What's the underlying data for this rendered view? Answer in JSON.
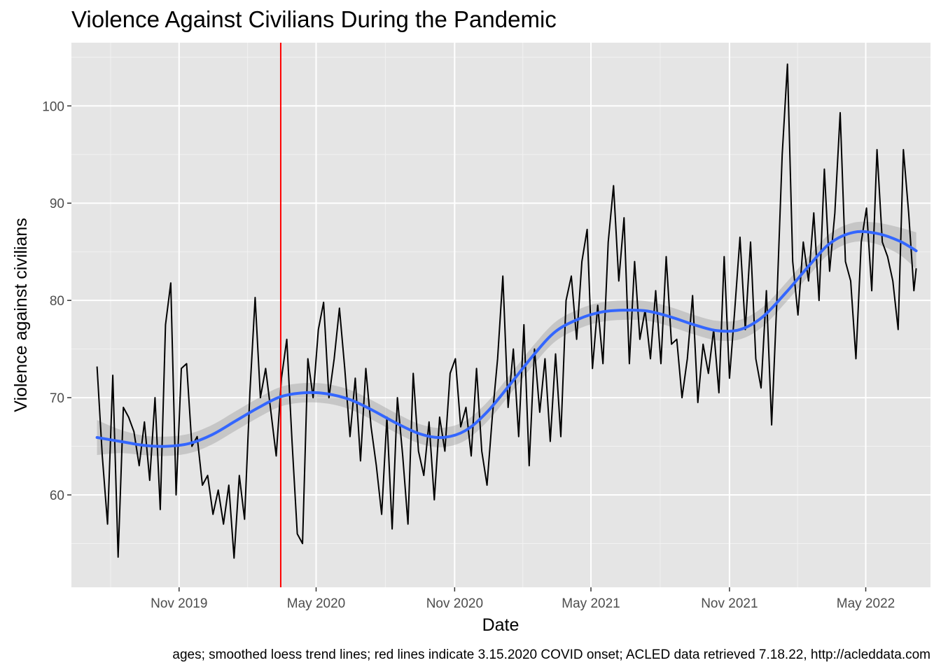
{
  "chart_data": {
    "type": "line",
    "title": "Violence Against Civilians During the Pandemic",
    "xlabel": "Date",
    "ylabel": "Violence against civilians",
    "caption": "ages; smoothed loess trend lines; red lines indicate 3.15.2020 COVID onset; ACLED data retrieved 7.18.22, http://acleddata.com",
    "x_ticks": [
      {
        "label": "Nov 2019",
        "date": "2019-11-01"
      },
      {
        "label": "May 2020",
        "date": "2020-05-01"
      },
      {
        "label": "Nov 2020",
        "date": "2020-11-01"
      },
      {
        "label": "May 2021",
        "date": "2021-05-01"
      },
      {
        "label": "Nov 2021",
        "date": "2021-11-01"
      },
      {
        "label": "May 2022",
        "date": "2022-05-01"
      }
    ],
    "y_ticks": [
      60,
      70,
      80,
      90,
      100
    ],
    "xlim": [
      "2019-06-11",
      "2022-07-26"
    ],
    "ylim": [
      50.5,
      106.5
    ],
    "grid": true,
    "vline": {
      "date": "2020-03-15",
      "color": "#ff0000"
    },
    "series": [
      {
        "kind": "rolling",
        "color": "#000000",
        "points": [
          [
            "2019-07-15",
            73.2
          ],
          [
            "2019-07-22",
            64.0
          ],
          [
            "2019-07-29",
            57.0
          ],
          [
            "2019-08-05",
            72.3
          ],
          [
            "2019-08-12",
            53.6
          ],
          [
            "2019-08-19",
            69.0
          ],
          [
            "2019-08-26",
            68.0
          ],
          [
            "2019-09-02",
            66.5
          ],
          [
            "2019-09-09",
            63.0
          ],
          [
            "2019-09-16",
            67.5
          ],
          [
            "2019-09-23",
            61.5
          ],
          [
            "2019-09-30",
            70.0
          ],
          [
            "2019-10-07",
            58.5
          ],
          [
            "2019-10-14",
            77.5
          ],
          [
            "2019-10-21",
            81.8
          ],
          [
            "2019-10-28",
            60.0
          ],
          [
            "2019-11-04",
            73.0
          ],
          [
            "2019-11-11",
            73.5
          ],
          [
            "2019-11-18",
            65.0
          ],
          [
            "2019-11-25",
            66.0
          ],
          [
            "2019-12-02",
            61.0
          ],
          [
            "2019-12-09",
            62.0
          ],
          [
            "2019-12-16",
            58.0
          ],
          [
            "2019-12-23",
            60.5
          ],
          [
            "2019-12-30",
            57.0
          ],
          [
            "2020-01-06",
            61.0
          ],
          [
            "2020-01-13",
            53.5
          ],
          [
            "2020-01-20",
            62.0
          ],
          [
            "2020-01-27",
            57.5
          ],
          [
            "2020-02-03",
            70.5
          ],
          [
            "2020-02-10",
            80.3
          ],
          [
            "2020-02-17",
            70.0
          ],
          [
            "2020-02-24",
            73.0
          ],
          [
            "2020-03-02",
            68.5
          ],
          [
            "2020-03-09",
            64.0
          ],
          [
            "2020-03-16",
            72.0
          ],
          [
            "2020-03-23",
            76.0
          ],
          [
            "2020-03-30",
            65.5
          ],
          [
            "2020-04-06",
            56.0
          ],
          [
            "2020-04-13",
            55.0
          ],
          [
            "2020-04-20",
            74.0
          ],
          [
            "2020-04-27",
            70.0
          ],
          [
            "2020-05-04",
            77.0
          ],
          [
            "2020-05-11",
            79.8
          ],
          [
            "2020-05-18",
            70.0
          ],
          [
            "2020-05-25",
            74.0
          ],
          [
            "2020-06-01",
            79.2
          ],
          [
            "2020-06-08",
            73.0
          ],
          [
            "2020-06-15",
            66.0
          ],
          [
            "2020-06-22",
            72.0
          ],
          [
            "2020-06-29",
            63.5
          ],
          [
            "2020-07-06",
            73.0
          ],
          [
            "2020-07-13",
            67.0
          ],
          [
            "2020-07-20",
            63.0
          ],
          [
            "2020-07-27",
            58.0
          ],
          [
            "2020-08-03",
            68.0
          ],
          [
            "2020-08-10",
            56.5
          ],
          [
            "2020-08-17",
            70.0
          ],
          [
            "2020-08-24",
            64.0
          ],
          [
            "2020-08-31",
            57.0
          ],
          [
            "2020-09-07",
            72.5
          ],
          [
            "2020-09-14",
            64.5
          ],
          [
            "2020-09-21",
            62.0
          ],
          [
            "2020-09-28",
            67.5
          ],
          [
            "2020-10-05",
            59.5
          ],
          [
            "2020-10-12",
            68.0
          ],
          [
            "2020-10-19",
            64.5
          ],
          [
            "2020-10-26",
            72.5
          ],
          [
            "2020-11-02",
            74.0
          ],
          [
            "2020-11-09",
            67.0
          ],
          [
            "2020-11-16",
            69.0
          ],
          [
            "2020-11-23",
            64.0
          ],
          [
            "2020-11-30",
            73.0
          ],
          [
            "2020-12-07",
            64.5
          ],
          [
            "2020-12-14",
            61.0
          ],
          [
            "2020-12-21",
            68.0
          ],
          [
            "2020-12-28",
            74.0
          ],
          [
            "2021-01-04",
            82.5
          ],
          [
            "2021-01-11",
            69.0
          ],
          [
            "2021-01-18",
            75.0
          ],
          [
            "2021-01-25",
            66.0
          ],
          [
            "2021-02-01",
            77.5
          ],
          [
            "2021-02-08",
            63.0
          ],
          [
            "2021-02-15",
            75.0
          ],
          [
            "2021-02-22",
            68.5
          ],
          [
            "2021-03-01",
            74.0
          ],
          [
            "2021-03-08",
            65.5
          ],
          [
            "2021-03-15",
            74.5
          ],
          [
            "2021-03-22",
            66.0
          ],
          [
            "2021-03-29",
            80.0
          ],
          [
            "2021-04-05",
            82.5
          ],
          [
            "2021-04-12",
            76.0
          ],
          [
            "2021-04-19",
            84.0
          ],
          [
            "2021-04-26",
            87.3
          ],
          [
            "2021-05-03",
            73.0
          ],
          [
            "2021-05-10",
            79.5
          ],
          [
            "2021-05-17",
            73.5
          ],
          [
            "2021-05-24",
            86.0
          ],
          [
            "2021-05-31",
            91.8
          ],
          [
            "2021-06-07",
            82.0
          ],
          [
            "2021-06-14",
            88.5
          ],
          [
            "2021-06-21",
            73.5
          ],
          [
            "2021-06-28",
            84.0
          ],
          [
            "2021-07-05",
            76.0
          ],
          [
            "2021-07-12",
            79.0
          ],
          [
            "2021-07-19",
            74.0
          ],
          [
            "2021-07-26",
            81.0
          ],
          [
            "2021-08-02",
            73.5
          ],
          [
            "2021-08-09",
            84.5
          ],
          [
            "2021-08-16",
            75.5
          ],
          [
            "2021-08-23",
            76.0
          ],
          [
            "2021-08-30",
            70.0
          ],
          [
            "2021-09-06",
            74.0
          ],
          [
            "2021-09-13",
            80.5
          ],
          [
            "2021-09-20",
            69.5
          ],
          [
            "2021-09-27",
            75.5
          ],
          [
            "2021-10-04",
            72.5
          ],
          [
            "2021-10-11",
            77.0
          ],
          [
            "2021-10-18",
            70.5
          ],
          [
            "2021-10-25",
            84.5
          ],
          [
            "2021-11-01",
            72.0
          ],
          [
            "2021-11-08",
            79.0
          ],
          [
            "2021-11-15",
            86.5
          ],
          [
            "2021-11-22",
            77.0
          ],
          [
            "2021-11-29",
            86.0
          ],
          [
            "2021-12-06",
            74.0
          ],
          [
            "2021-12-13",
            71.0
          ],
          [
            "2021-12-20",
            81.0
          ],
          [
            "2021-12-27",
            67.2
          ],
          [
            "2022-01-03",
            80.0
          ],
          [
            "2022-01-10",
            95.0
          ],
          [
            "2022-01-17",
            104.3
          ],
          [
            "2022-01-24",
            84.0
          ],
          [
            "2022-01-31",
            78.5
          ],
          [
            "2022-02-07",
            86.0
          ],
          [
            "2022-02-14",
            82.0
          ],
          [
            "2022-02-21",
            89.0
          ],
          [
            "2022-02-28",
            80.0
          ],
          [
            "2022-03-07",
            93.5
          ],
          [
            "2022-03-14",
            83.0
          ],
          [
            "2022-03-21",
            89.0
          ],
          [
            "2022-03-28",
            99.3
          ],
          [
            "2022-04-04",
            84.0
          ],
          [
            "2022-04-11",
            82.0
          ],
          [
            "2022-04-18",
            74.0
          ],
          [
            "2022-04-25",
            86.0
          ],
          [
            "2022-05-02",
            89.5
          ],
          [
            "2022-05-09",
            81.0
          ],
          [
            "2022-05-16",
            95.5
          ],
          [
            "2022-05-23",
            86.0
          ],
          [
            "2022-05-30",
            84.5
          ],
          [
            "2022-06-06",
            82.0
          ],
          [
            "2022-06-13",
            77.0
          ],
          [
            "2022-06-20",
            95.5
          ],
          [
            "2022-06-27",
            89.0
          ],
          [
            "2022-07-04",
            81.0
          ],
          [
            "2022-07-07",
            83.3
          ]
        ]
      },
      {
        "kind": "loess",
        "color": "#3366ff",
        "band_color": "#999999",
        "points": [
          [
            "2019-07-15",
            65.9
          ],
          [
            "2019-08-15",
            65.5
          ],
          [
            "2019-09-15",
            65.1
          ],
          [
            "2019-10-15",
            65.0
          ],
          [
            "2019-11-15",
            65.3
          ],
          [
            "2019-12-15",
            66.2
          ],
          [
            "2020-01-15",
            67.6
          ],
          [
            "2020-02-15",
            69.0
          ],
          [
            "2020-03-15",
            70.1
          ],
          [
            "2020-04-15",
            70.5
          ],
          [
            "2020-05-15",
            70.4
          ],
          [
            "2020-06-15",
            69.8
          ],
          [
            "2020-07-15",
            68.7
          ],
          [
            "2020-08-15",
            67.4
          ],
          [
            "2020-09-15",
            66.3
          ],
          [
            "2020-10-15",
            65.9
          ],
          [
            "2020-11-15",
            66.6
          ],
          [
            "2020-12-15",
            68.6
          ],
          [
            "2021-01-15",
            71.5
          ],
          [
            "2021-02-15",
            74.5
          ],
          [
            "2021-03-15",
            76.8
          ],
          [
            "2021-04-15",
            78.1
          ],
          [
            "2021-05-15",
            78.8
          ],
          [
            "2021-06-15",
            79.0
          ],
          [
            "2021-07-15",
            78.9
          ],
          [
            "2021-08-15",
            78.3
          ],
          [
            "2021-09-15",
            77.5
          ],
          [
            "2021-10-15",
            76.9
          ],
          [
            "2021-11-15",
            77.0
          ],
          [
            "2021-12-15",
            78.3
          ],
          [
            "2022-01-15",
            80.8
          ],
          [
            "2022-02-15",
            83.6
          ],
          [
            "2022-03-15",
            85.9
          ],
          [
            "2022-04-15",
            87.0
          ],
          [
            "2022-05-15",
            86.9
          ],
          [
            "2022-06-15",
            86.1
          ],
          [
            "2022-07-07",
            85.1
          ]
        ],
        "band_halfwidth": [
          1.8,
          1.2,
          1.0,
          1.0,
          1.0,
          1.0,
          1.0,
          1.0,
          1.0,
          1.0,
          1.0,
          1.0,
          1.0,
          1.0,
          1.0,
          1.0,
          1.0,
          1.0,
          1.0,
          1.0,
          1.0,
          1.0,
          1.0,
          1.0,
          1.0,
          1.0,
          1.0,
          1.0,
          1.0,
          1.0,
          1.0,
          1.0,
          1.0,
          1.0,
          1.1,
          1.4,
          1.9
        ]
      }
    ]
  }
}
